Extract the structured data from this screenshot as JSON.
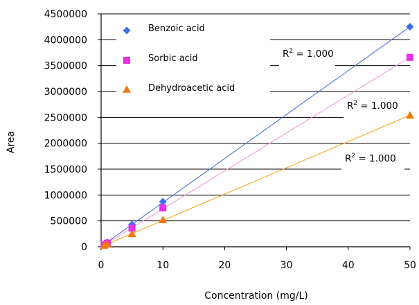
{
  "chart_data": {
    "type": "scatter",
    "xlabel": "Concentration (mg/L)",
    "ylabel": "Area",
    "x_ticks": [
      "0",
      "10",
      "20",
      "30",
      "40",
      "50"
    ],
    "y_ticks": [
      "0",
      "500000",
      "1000000",
      "1500000",
      "2000000",
      "2500000",
      "3000000",
      "3500000",
      "4000000",
      "4500000"
    ],
    "x_categories": [
      0,
      10,
      20,
      30,
      40,
      50
    ],
    "y_range": [
      0,
      4500000
    ],
    "grid": "horizontal",
    "legend_placement": "top-left",
    "series": [
      {
        "name": "Benzoic acid",
        "marker": "diamond",
        "color": "#3d6fe6",
        "line_color": "#4a74d9",
        "x": [
          0.5,
          1,
          5,
          10,
          50
        ],
        "y": [
          45000,
          85000,
          430000,
          870000,
          4250000
        ]
      },
      {
        "name": "Sorbic acid",
        "marker": "square",
        "color": "#e62ee6",
        "line_color": "#f29ad8",
        "x": [
          0.5,
          1,
          5,
          10,
          50
        ],
        "y": [
          36000,
          72000,
          360000,
          750000,
          3660000
        ]
      },
      {
        "name": "Dehydroacetic acid",
        "marker": "triangle",
        "color": "#f07a0f",
        "line_color": "#f5a623",
        "x": [
          0.5,
          1,
          5,
          10,
          50
        ],
        "y": [
          25000,
          50000,
          250000,
          520000,
          2540000
        ]
      }
    ],
    "annotations": [
      {
        "base": "R",
        "sup": "2",
        "rest": " = 1.000"
      },
      {
        "base": "R",
        "sup": "2",
        "rest": " = 1.000"
      },
      {
        "base": "R",
        "sup": "2",
        "rest": " = 1.000"
      }
    ]
  }
}
